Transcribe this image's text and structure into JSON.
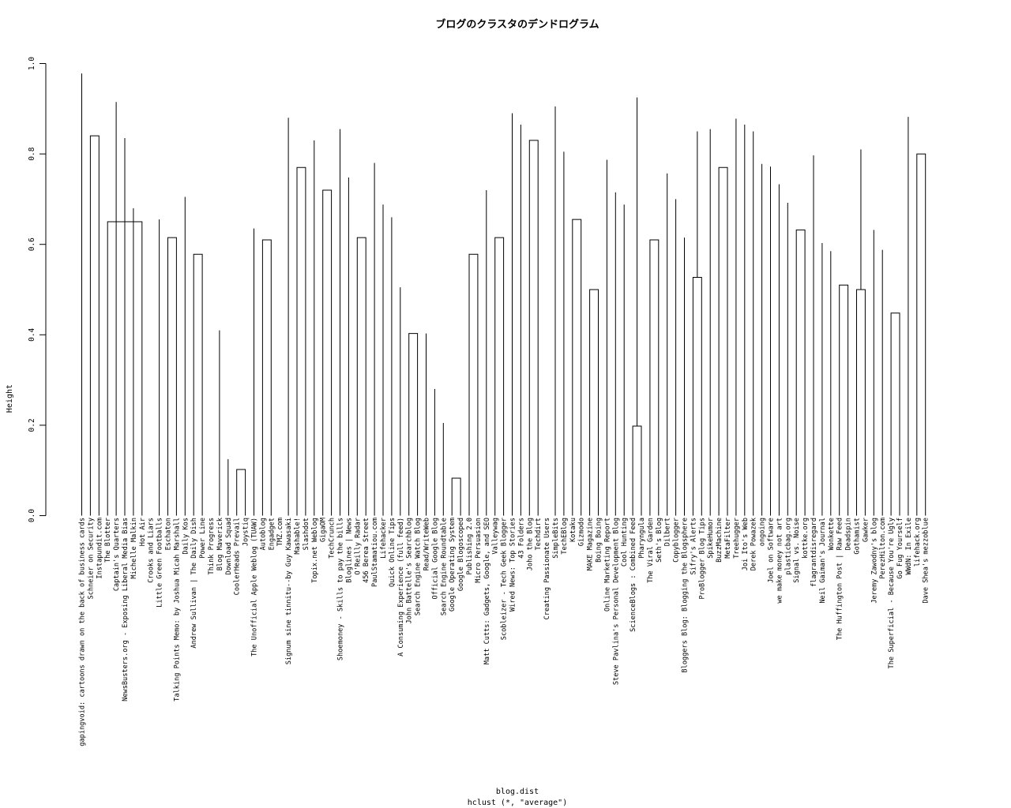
{
  "chart_data": {
    "type": "dendrogram",
    "title": "ブログのクラスタのデンドログラム",
    "xlabel": "blog.dist",
    "sublabel": "hclust (*, \"average\")",
    "ylabel": "Height",
    "ylim": [
      0,
      1.0
    ],
    "yticks": [
      "0.0",
      "0.2",
      "0.4",
      "0.6",
      "0.8",
      "1.0"
    ],
    "leaves": [
      "gapingvoid: cartoons drawn on the back of business cards",
      "Schneier on Security",
      "Instapundit.com",
      "The Blotter",
      "Captain's Quarters",
      "NewsBusters.org - Exposing Liberal Media Bias",
      "Michelle Malkin",
      "Hot Air",
      "Crooks and Liars",
      "Little Green Footballs",
      "Eschaton",
      "Talking Points Memo: by Joshua Micah Marshall",
      "Daily Kos",
      "Andrew Sullivan | The Daily Dish",
      "Power Line",
      "Think Progress",
      "Blog Maverick",
      "Download Squad",
      "CoolerHeads Prevail",
      "Joystiq",
      "The Unofficial Apple Weblog (TUAW)",
      "Autoblog",
      "Engadget",
      "TMZ.com",
      "Signum sine tinnitu--by Guy Kawasaki",
      "Mashable!",
      "Slashdot",
      "Topix.net Weblog",
      "GigaOM",
      "TechCrunch",
      "Shoemoney - Skills to pay the bills",
      "Bloglines | News",
      "O'Reilly Radar",
      "456 Berea Street",
      "PaulStamatiou.com",
      "Lifehacker",
      "Quick Online Tips",
      "A Consuming Experience (full feed)",
      "John Battelle's Searchblog",
      "Search Engine Watch Blog",
      "Read/WriteWeb",
      "Official Google Blog",
      "Search Engine Roundtable",
      "Google Operating System",
      "Google Blogoscoped",
      "Publishing 2.0",
      "Micro Persuasion",
      "Matt Cutts: Gadgets, Google, and SEO",
      "Valleywag",
      "Scobleizer - Tech Geek Blogger",
      "Wired News: Top Stories",
      "43 Folders",
      "Joho the Blog",
      "Techdirt",
      "Creating Passionate Users",
      "SimpleBits",
      "TechEBlog",
      "Kotaku",
      "Gizmodo",
      "MAKE Magazine",
      "Boing Boing",
      "Online Marketing Report",
      "Steve Pavlina's Personal Development Blog",
      "Cool Hunting",
      "ScienceBlogs : Combined Feed",
      "Pharyngula",
      "The Viral Garden",
      "Seth's Blog",
      "Dilbert",
      "Copyblogger",
      "Bloggers Blog: Blogging the Blogsphere",
      "Sifry's Alerts",
      "ProBlogger Blog Tips",
      "SpikeHumor",
      "BuzzMachine",
      "MetaFilter",
      "Treehugger",
      "Joi Ito's Web",
      "Derek Powazek",
      "ongoing",
      "Joel on Software",
      "we make money not art",
      "plasticbag.org",
      "Signal vs. Noise",
      "kottke.org",
      "flagrantdisregard",
      "Neil Gaiman's Journal",
      "Wonkette",
      "The Huffington Post | Raw Feed",
      "Deadspin",
      "Gothamist",
      "Gawker",
      "Jeremy Zawodny's blog",
      "PerezHilton.com",
      "The Superficial - Because You're Ugly",
      "Go Fug Yourself",
      "WWdN: In Exile",
      "lifehack.org",
      "Dave Shea's mezzoblue"
    ],
    "merges": [
      [
        1,
        2,
        0.84
      ],
      [
        3,
        7,
        0.65
      ],
      [
        6,
        102,
        0.68
      ],
      [
        10,
        11,
        0.615
      ],
      [
        9,
        104,
        0.655
      ],
      [
        13,
        14,
        0.578
      ],
      [
        12,
        106,
        0.705
      ],
      [
        105,
        107,
        0.73
      ],
      [
        103,
        108,
        0.78
      ],
      [
        5,
        109,
        0.835
      ],
      [
        4,
        110,
        0.915
      ],
      [
        101,
        111,
        0.945
      ],
      [
        18,
        19,
        0.102
      ],
      [
        17,
        113,
        0.125
      ],
      [
        16,
        114,
        0.41
      ],
      [
        21,
        22,
        0.61
      ],
      [
        20,
        116,
        0.635
      ],
      [
        115,
        117,
        0.825
      ],
      [
        25,
        26,
        0.77
      ],
      [
        24,
        119,
        0.88
      ],
      [
        28,
        29,
        0.72
      ],
      [
        27,
        121,
        0.83
      ],
      [
        32,
        33,
        0.615
      ],
      [
        31,
        123,
        0.748
      ],
      [
        43,
        44,
        0.083
      ],
      [
        42,
        125,
        0.205
      ],
      [
        41,
        126,
        0.28
      ],
      [
        40,
        127,
        0.403
      ],
      [
        38,
        39,
        0.403
      ],
      [
        129,
        128,
        0.433
      ],
      [
        37,
        130,
        0.505
      ],
      [
        45,
        46,
        0.578
      ],
      [
        131,
        132,
        0.655
      ],
      [
        36,
        133,
        0.66
      ],
      [
        35,
        134,
        0.688
      ],
      [
        48,
        49,
        0.615
      ],
      [
        47,
        136,
        0.72
      ],
      [
        135,
        137,
        0.757
      ],
      [
        34,
        138,
        0.78
      ],
      [
        124,
        139,
        0.812
      ],
      [
        30,
        140,
        0.855
      ],
      [
        122,
        141,
        0.86
      ],
      [
        52,
        53,
        0.83
      ],
      [
        51,
        143,
        0.865
      ],
      [
        50,
        144,
        0.89
      ],
      [
        142,
        145,
        0.895
      ],
      [
        120,
        146,
        0.918
      ],
      [
        57,
        58,
        0.655
      ],
      [
        56,
        148,
        0.805
      ],
      [
        55,
        149,
        0.905
      ],
      [
        59,
        60,
        0.5
      ],
      [
        64,
        65,
        0.198
      ],
      [
        63,
        152,
        0.688
      ],
      [
        62,
        153,
        0.715
      ],
      [
        61,
        154,
        0.787
      ],
      [
        66,
        67,
        0.61
      ],
      [
        71,
        72,
        0.527
      ],
      [
        70,
        157,
        0.615
      ],
      [
        69,
        158,
        0.7
      ],
      [
        68,
        159,
        0.757
      ],
      [
        156,
        160,
        0.81
      ],
      [
        155,
        161,
        0.85
      ],
      [
        74,
        75,
        0.77
      ],
      [
        73,
        163,
        0.855
      ],
      [
        83,
        84,
        0.632
      ],
      [
        82,
        165,
        0.692
      ],
      [
        81,
        166,
        0.733
      ],
      [
        80,
        167,
        0.772
      ],
      [
        79,
        168,
        0.778
      ],
      [
        88,
        89,
        0.51
      ],
      [
        90,
        91,
        0.5
      ],
      [
        170,
        171,
        0.555
      ],
      [
        87,
        172,
        0.585
      ],
      [
        86,
        173,
        0.603
      ],
      [
        94,
        95,
        0.448
      ],
      [
        93,
        175,
        0.588
      ],
      [
        92,
        176,
        0.632
      ],
      [
        174,
        177,
        0.705
      ],
      [
        85,
        178,
        0.797
      ],
      [
        169,
        179,
        0.81
      ],
      [
        78,
        180,
        0.85
      ],
      [
        77,
        181,
        0.865
      ],
      [
        76,
        182,
        0.878
      ],
      [
        164,
        183,
        0.885
      ],
      [
        97,
        98,
        0.8
      ],
      [
        96,
        185,
        0.882
      ],
      [
        184,
        186,
        0.888
      ],
      [
        162,
        187,
        0.902
      ],
      [
        151,
        188,
        0.912
      ],
      [
        150,
        189,
        0.925
      ],
      [
        147,
        190,
        0.932
      ],
      [
        118,
        191,
        0.955
      ],
      [
        112,
        192,
        0.963
      ],
      [
        0,
        193,
        0.978
      ]
    ]
  }
}
